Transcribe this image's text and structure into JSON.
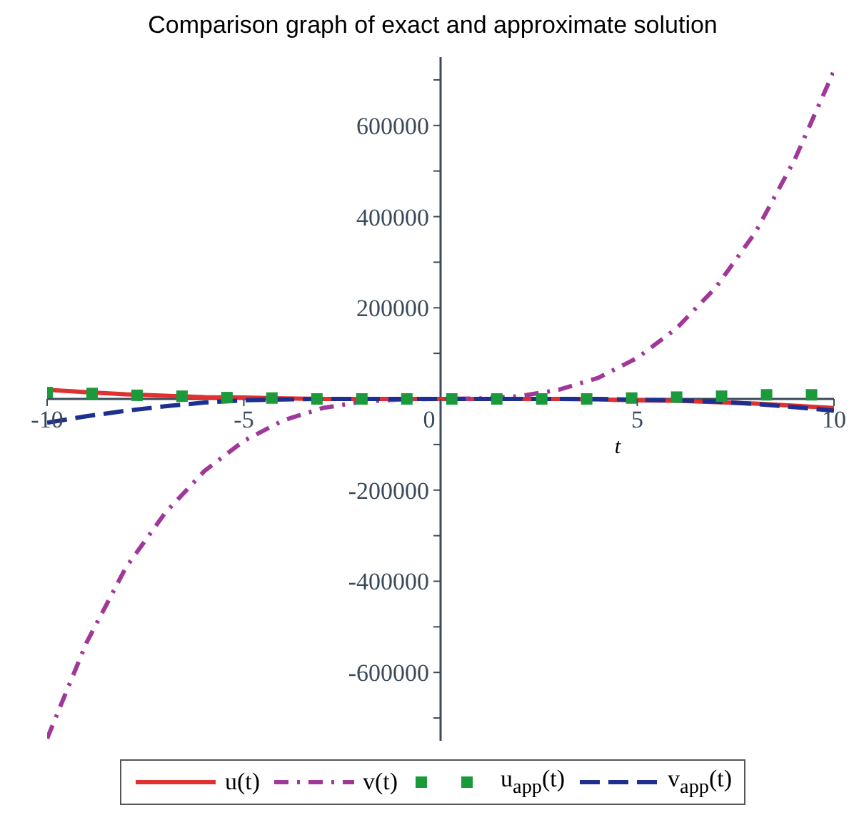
{
  "chart_data": {
    "type": "line",
    "title": "Comparison graph of exact and approximate solution",
    "xlabel": "t",
    "xlim": [
      -10,
      10
    ],
    "xticks": [
      -10,
      -5,
      0,
      5,
      10
    ],
    "ylim": [
      -750000,
      750000
    ],
    "yticks": [
      {
        "value": -700000,
        "label": null
      },
      -600000,
      {
        "value": -500000,
        "label": null
      },
      -400000,
      {
        "value": -300000,
        "label": null
      },
      -200000,
      {
        "value": -100000,
        "label": null
      },
      {
        "value": 100000,
        "label": null
      },
      200000,
      {
        "value": 300000,
        "label": null
      },
      400000,
      {
        "value": 500000,
        "label": null
      },
      600000,
      {
        "value": 700000,
        "label": null
      }
    ],
    "grid": false,
    "legend": "bottom",
    "marker": "none",
    "series": [
      {
        "name": "u(t)",
        "type": "line",
        "line_style": "solid",
        "color": "#e03030",
        "x": [
          -10,
          -9,
          -8,
          -7,
          -6,
          -5,
          -4,
          -3,
          -2,
          -1,
          0,
          1,
          2,
          3,
          4,
          5,
          6,
          7,
          8,
          9,
          10
        ],
        "values": [
          20000,
          15000,
          10000,
          7000,
          4000,
          3000,
          1000,
          0,
          0,
          0,
          0,
          0,
          0,
          0,
          -1000,
          -3000,
          -4000,
          -7000,
          -10000,
          -15000,
          -20000
        ]
      },
      {
        "name": "v(t)",
        "type": "line",
        "line_style": "dashdot",
        "color": "#a0389a",
        "x": [
          -10,
          -9,
          -8,
          -7,
          -6,
          -5,
          -4,
          -3,
          -2,
          -1,
          0,
          1,
          2,
          3,
          4,
          5,
          6,
          7,
          8,
          9,
          10
        ],
        "values": [
          -745000,
          -535000,
          -370000,
          -250000,
          -158000,
          -92000,
          -47000,
          -20000,
          -6000,
          -1000,
          0,
          1000,
          6000,
          20000,
          46000,
          90000,
          155000,
          245000,
          365000,
          525000,
          720000
        ]
      },
      {
        "name": "u$_{app}$(t)",
        "type": "scatter",
        "marker": "square",
        "color": "#1a9a3a",
        "x": [
          -10,
          -8.857,
          -7.714,
          -6.571,
          -5.429,
          -4.286,
          -3.143,
          -2,
          -0.857,
          0.286,
          1.429,
          2.571,
          3.714,
          4.857,
          6,
          7.143,
          8.286,
          9.429
        ],
        "values": [
          14000,
          12000,
          8000,
          6000,
          3000,
          2000,
          0,
          0,
          0,
          0,
          0,
          0,
          0,
          2000,
          4000,
          6000,
          9000,
          9000
        ]
      },
      {
        "name": "v$_{app}$(t)",
        "type": "line",
        "line_style": "dashed",
        "color": "#1f2f8f",
        "x": [
          -10,
          -9,
          -8,
          -7,
          -6,
          -5,
          -4,
          -3,
          -2,
          -1,
          0,
          1,
          2,
          3,
          4,
          5,
          6,
          7,
          8,
          9,
          10
        ],
        "values": [
          -52000,
          -38000,
          -26000,
          -16000,
          -8000,
          -3000,
          -1000,
          0,
          0,
          0,
          0,
          0,
          0,
          0,
          0,
          -2000,
          -3000,
          -6000,
          -11000,
          -18000,
          -26000
        ]
      }
    ]
  }
}
